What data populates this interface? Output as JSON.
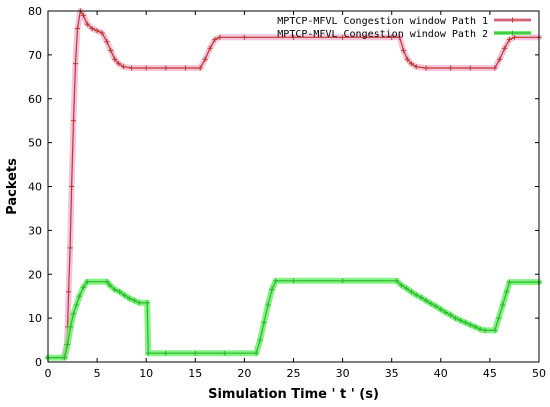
{
  "chart_data": {
    "type": "line",
    "xlabel": "Simulation Time ' t ' (s)",
    "ylabel": "Packets",
    "xlim": [
      0,
      50
    ],
    "ylim": [
      0,
      80
    ],
    "xticks": [
      0,
      5,
      10,
      15,
      20,
      25,
      30,
      35,
      40,
      45,
      50
    ],
    "yticks": [
      0,
      10,
      20,
      30,
      40,
      50,
      60,
      70,
      80
    ],
    "grid": false,
    "legend_position": "top-right",
    "series": [
      {
        "name": "MPTCP-MFVL Congestion window Path 1",
        "color": "#c0392b",
        "highlight": "#f2b8d8",
        "marker": "plus",
        "points": [
          [
            1.6,
            1
          ],
          [
            1.9,
            4
          ],
          [
            2.0,
            8
          ],
          [
            2.1,
            16
          ],
          [
            2.25,
            26
          ],
          [
            2.4,
            40
          ],
          [
            2.6,
            55
          ],
          [
            2.8,
            68
          ],
          [
            3.0,
            76
          ],
          [
            3.3,
            80
          ],
          [
            3.6,
            79
          ],
          [
            4.0,
            77
          ],
          [
            4.5,
            76
          ],
          [
            5.0,
            75.5
          ],
          [
            5.5,
            75
          ],
          [
            6.0,
            73
          ],
          [
            6.4,
            71
          ],
          [
            6.8,
            69
          ],
          [
            7.2,
            68
          ],
          [
            7.7,
            67.3
          ],
          [
            8.5,
            67
          ],
          [
            10,
            67
          ],
          [
            12,
            67
          ],
          [
            14,
            67
          ],
          [
            15.5,
            67
          ],
          [
            16.0,
            69
          ],
          [
            16.5,
            71.5
          ],
          [
            17.0,
            73.5
          ],
          [
            17.5,
            74
          ],
          [
            20,
            74
          ],
          [
            25,
            74
          ],
          [
            30,
            74
          ],
          [
            35,
            74
          ],
          [
            35.8,
            74
          ],
          [
            36.2,
            71
          ],
          [
            36.6,
            69
          ],
          [
            37.0,
            68
          ],
          [
            37.5,
            67.3
          ],
          [
            38.5,
            67
          ],
          [
            41,
            67
          ],
          [
            43,
            67
          ],
          [
            45.5,
            67
          ],
          [
            46.0,
            69
          ],
          [
            46.5,
            71.5
          ],
          [
            47.0,
            73.5
          ],
          [
            47.5,
            74
          ],
          [
            50,
            74
          ]
        ]
      },
      {
        "name": "MPTCP-MFVL Congestion window Path 2",
        "color": "#2db82d",
        "highlight": "#6ff06f",
        "marker": "plus",
        "points": [
          [
            0,
            1
          ],
          [
            1.7,
            1
          ],
          [
            2.0,
            4
          ],
          [
            2.3,
            8
          ],
          [
            2.6,
            11
          ],
          [
            2.9,
            13
          ],
          [
            3.2,
            15
          ],
          [
            3.6,
            17
          ],
          [
            4.0,
            18.3
          ],
          [
            6.0,
            18.3
          ],
          [
            6.3,
            17.5
          ],
          [
            6.8,
            16.5
          ],
          [
            7.3,
            16
          ],
          [
            7.8,
            15.2
          ],
          [
            8.3,
            14.5
          ],
          [
            8.8,
            14
          ],
          [
            9.3,
            13.5
          ],
          [
            10.1,
            13.5
          ],
          [
            10.2,
            2
          ],
          [
            12,
            2
          ],
          [
            15,
            2
          ],
          [
            18,
            2
          ],
          [
            21.2,
            2
          ],
          [
            21.6,
            5
          ],
          [
            22.0,
            9
          ],
          [
            22.4,
            13
          ],
          [
            22.8,
            16.5
          ],
          [
            23.2,
            18.5
          ],
          [
            25,
            18.5
          ],
          [
            30,
            18.5
          ],
          [
            35.5,
            18.5
          ],
          [
            36.0,
            17.5
          ],
          [
            36.5,
            16.8
          ],
          [
            37.0,
            16
          ],
          [
            37.5,
            15.3
          ],
          [
            38.0,
            14.7
          ],
          [
            38.5,
            14
          ],
          [
            39.0,
            13.3
          ],
          [
            39.5,
            12.7
          ],
          [
            40.0,
            12
          ],
          [
            40.5,
            11.3
          ],
          [
            41.0,
            10.7
          ],
          [
            41.5,
            10
          ],
          [
            42.0,
            9.5
          ],
          [
            42.5,
            9
          ],
          [
            43.0,
            8.5
          ],
          [
            43.5,
            8
          ],
          [
            44.0,
            7.5
          ],
          [
            44.5,
            7.2
          ],
          [
            45.5,
            7.2
          ],
          [
            45.9,
            10
          ],
          [
            46.3,
            13
          ],
          [
            46.7,
            16
          ],
          [
            47.0,
            18.2
          ],
          [
            50,
            18.2
          ]
        ]
      }
    ]
  }
}
